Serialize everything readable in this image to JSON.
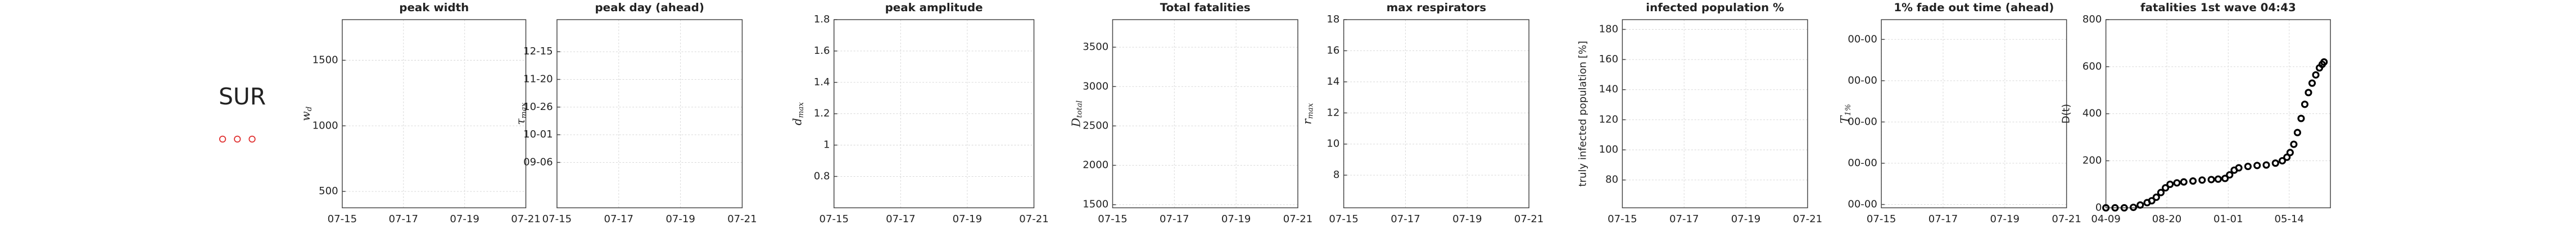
{
  "region": "SUR",
  "chart_data": [
    {
      "type": "line",
      "title": "peak width",
      "ylabel": "w",
      "ylabel_sub": "d",
      "xticks": [
        "07-15",
        "07-17",
        "07-19",
        "07-21"
      ],
      "ylim": [
        375,
        1810
      ],
      "yticks": [
        500,
        1000,
        1500
      ],
      "grid": true
    },
    {
      "type": "line",
      "title": "peak day (ahead)",
      "ylabel": "τ",
      "ylabel_sub": "max",
      "xticks": [
        "07-15",
        "07-17",
        "07-19",
        "07-21"
      ],
      "ylim": [
        208,
        378
      ],
      "yticks": [
        {
          "value": 249,
          "label": "09-06"
        },
        {
          "value": 274,
          "label": "10-01"
        },
        {
          "value": 299,
          "label": "10-26"
        },
        {
          "value": 324,
          "label": "11-20"
        },
        {
          "value": 349,
          "label": "12-15"
        }
      ],
      "grid": true
    },
    {
      "type": "line",
      "title": "peak amplitude",
      "ylabel": "d",
      "ylabel_sub": "max",
      "xticks": [
        "07-15",
        "07-17",
        "07-19",
        "07-21"
      ],
      "ylim": [
        0.6,
        1.8
      ],
      "yticks": [
        0.8,
        1,
        1.2,
        1.4,
        1.6,
        1.8
      ],
      "grid": true
    },
    {
      "type": "line",
      "title": "Total fatalities",
      "ylabel": "D",
      "ylabel_sub": "total",
      "xticks": [
        "07-15",
        "07-17",
        "07-19",
        "07-21"
      ],
      "ylim": [
        1460,
        3850
      ],
      "yticks": [
        1500,
        2000,
        2500,
        3000,
        3500
      ],
      "grid": true
    },
    {
      "type": "line",
      "title": "max respirators",
      "ylabel": "r",
      "ylabel_sub": "max",
      "xticks": [
        "07-15",
        "07-17",
        "07-19",
        "07-21"
      ],
      "ylim": [
        5.9,
        18
      ],
      "yticks": [
        8,
        10,
        12,
        14,
        16,
        18
      ],
      "grid": true
    },
    {
      "type": "line",
      "title": "infected population %",
      "ylabel": "truly infected population [%]",
      "xticks": [
        "07-15",
        "07-17",
        "07-19",
        "07-21"
      ],
      "ylim": [
        61.5,
        186.5
      ],
      "yticks": [
        80,
        100,
        120,
        140,
        160,
        180
      ],
      "grid": true
    },
    {
      "type": "line",
      "title": "1% fade out time (ahead)",
      "ylabel": "T",
      "ylabel_sub": "1%",
      "xticks": [
        "07-15",
        "07-17",
        "07-19",
        "07-21"
      ],
      "ylim": [
        -0.08,
        4.48
      ],
      "yticks": [
        {
          "value": 0,
          "label": "00-00"
        },
        {
          "value": 1,
          "label": "00-00"
        },
        {
          "value": 2,
          "label": "00-00"
        },
        {
          "value": 3,
          "label": "00-00"
        },
        {
          "value": 4,
          "label": "00-00"
        }
      ],
      "grid": true
    },
    {
      "type": "scatter",
      "title": "fatalities 1st wave 04:43",
      "ylabel": "D(t)",
      "xlim": [
        0,
        490
      ],
      "xticks": [
        {
          "value": 0,
          "label": "04-09"
        },
        {
          "value": 133,
          "label": "08-20"
        },
        {
          "value": 267,
          "label": "01-01"
        },
        {
          "value": 400,
          "label": "05-14"
        }
      ],
      "ylim": [
        0,
        800
      ],
      "yticks": [
        0,
        200,
        400,
        600,
        800
      ],
      "grid": true,
      "x": [
        0,
        20,
        40,
        60,
        75,
        90,
        100,
        110,
        120,
        130,
        140,
        155,
        170,
        190,
        210,
        230,
        245,
        260,
        270,
        280,
        290,
        310,
        330,
        350,
        370,
        385,
        395,
        402,
        410,
        418,
        426,
        434,
        442,
        450,
        458,
        466,
        472,
        476
      ],
      "series": [
        {
          "color": "#000000",
          "values": [
            0,
            0,
            0,
            2,
            12,
            22,
            30,
            45,
            65,
            85,
            100,
            106,
            110,
            114,
            118,
            120,
            122,
            125,
            140,
            160,
            170,
            176,
            180,
            182,
            190,
            200,
            215,
            235,
            270,
            320,
            380,
            440,
            490,
            530,
            565,
            595,
            610,
            620
          ]
        }
      ]
    }
  ]
}
